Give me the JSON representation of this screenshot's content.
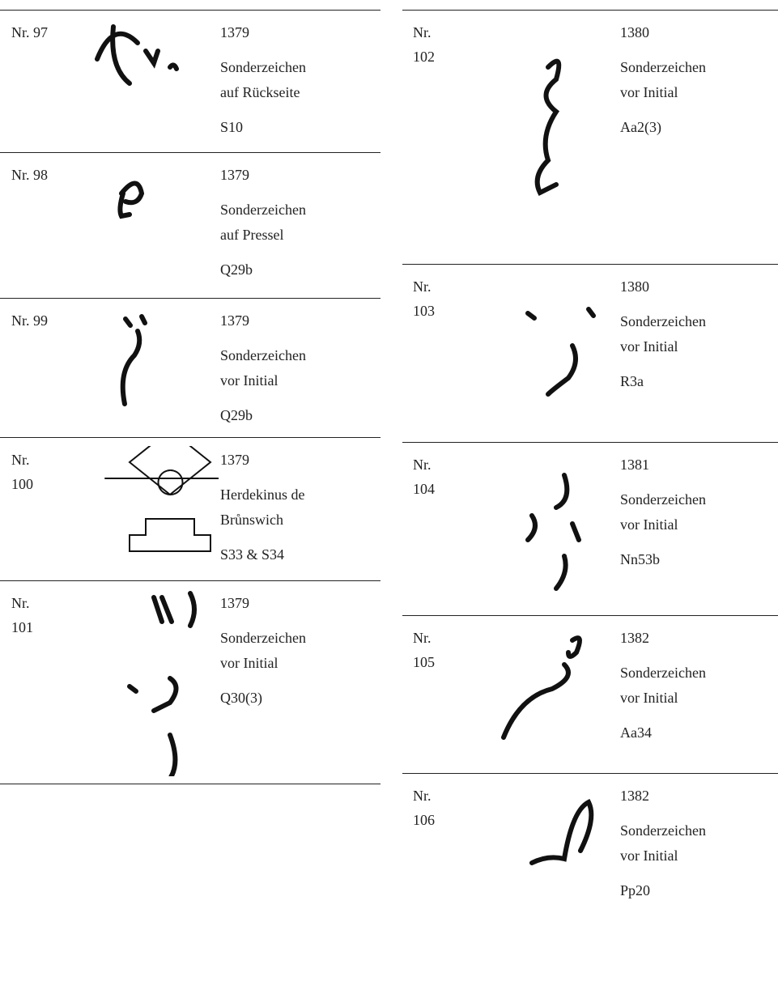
{
  "left": [
    {
      "nr": [
        "Nr. 97"
      ],
      "year": "1379",
      "description": [
        "Sonderzeichen",
        "auf Rückseite"
      ],
      "code": "S10"
    },
    {
      "nr": [
        "Nr. 98"
      ],
      "year": "1379",
      "description": [
        "Sonderzeichen",
        "auf Pressel"
      ],
      "code": "Q29b"
    },
    {
      "nr": [
        "Nr. 99"
      ],
      "year": "1379",
      "description": [
        "Sonderzeichen",
        "vor Initial"
      ],
      "code": "Q29b"
    },
    {
      "nr": [
        "Nr.",
        "100"
      ],
      "year": "1379",
      "description": [
        "Herdekinus de",
        "Brůnswich"
      ],
      "code": "S33 & S34"
    },
    {
      "nr": [
        "Nr.",
        "101"
      ],
      "year": "1379",
      "description": [
        "Sonderzeichen",
        "vor Initial"
      ],
      "code": "Q30(3)"
    }
  ],
  "right": [
    {
      "nr": [
        "Nr.",
        "102"
      ],
      "year": "1380",
      "description": [
        "Sonderzeichen",
        "vor Initial"
      ],
      "code": "Aa2(3)"
    },
    {
      "nr": [
        "Nr.",
        "103"
      ],
      "year": "1380",
      "description": [
        "Sonderzeichen",
        "vor Initial"
      ],
      "code": "R3a"
    },
    {
      "nr": [
        "Nr.",
        "104"
      ],
      "year": "1381",
      "description": [
        "Sonderzeichen",
        "vor Initial"
      ],
      "code": "Nn53b"
    },
    {
      "nr": [
        "Nr.",
        "105"
      ],
      "year": "1382",
      "description": [
        "Sonderzeichen",
        "vor Initial"
      ],
      "code": "Aa34"
    },
    {
      "nr": [
        "Nr.",
        "106"
      ],
      "year": "1382",
      "description": [
        "Sonderzeichen",
        "vor Initial"
      ],
      "code": "Pp20"
    }
  ]
}
